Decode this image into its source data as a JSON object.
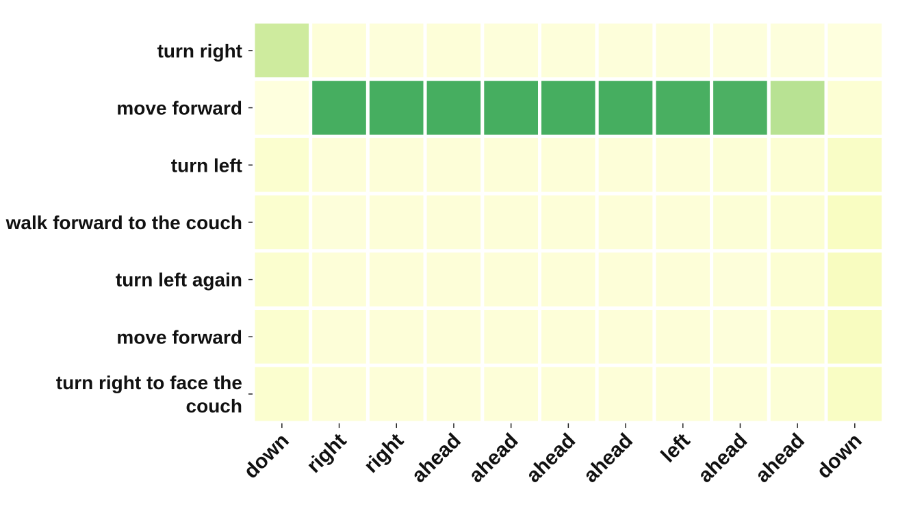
{
  "chart_data": {
    "type": "heatmap",
    "title": "",
    "xlabel": "",
    "ylabel": "",
    "x_categories": [
      "down",
      "right",
      "right",
      "ahead",
      "ahead",
      "ahead",
      "ahead",
      "left",
      "ahead",
      "ahead",
      "down"
    ],
    "y_categories": [
      "turn right",
      "move forward",
      "turn left",
      "walk forward to the couch",
      "turn left again",
      "move forward",
      "turn right to face the couch"
    ],
    "values": [
      [
        0.45,
        0.06,
        0.05,
        0.06,
        0.05,
        0.05,
        0.05,
        0.05,
        0.04,
        0.04,
        0.03
      ],
      [
        0.03,
        0.98,
        0.98,
        0.98,
        0.98,
        0.98,
        0.98,
        0.97,
        0.96,
        0.55,
        0.08
      ],
      [
        0.1,
        0.06,
        0.06,
        0.06,
        0.06,
        0.06,
        0.06,
        0.06,
        0.07,
        0.08,
        0.14
      ],
      [
        0.1,
        0.05,
        0.06,
        0.06,
        0.06,
        0.06,
        0.06,
        0.06,
        0.07,
        0.08,
        0.16
      ],
      [
        0.1,
        0.06,
        0.06,
        0.06,
        0.06,
        0.06,
        0.06,
        0.06,
        0.05,
        0.08,
        0.17
      ],
      [
        0.1,
        0.06,
        0.06,
        0.06,
        0.06,
        0.06,
        0.06,
        0.06,
        0.05,
        0.08,
        0.17
      ],
      [
        0.1,
        0.06,
        0.06,
        0.06,
        0.06,
        0.06,
        0.06,
        0.06,
        0.06,
        0.07,
        0.15
      ]
    ],
    "value_range": [
      0,
      1
    ],
    "colormap": [
      "#ffffe5",
      "#f7fcb9",
      "#d9f0a3",
      "#addd8e",
      "#78c679",
      "#41ab5d"
    ],
    "grid": false,
    "legend": "none"
  }
}
